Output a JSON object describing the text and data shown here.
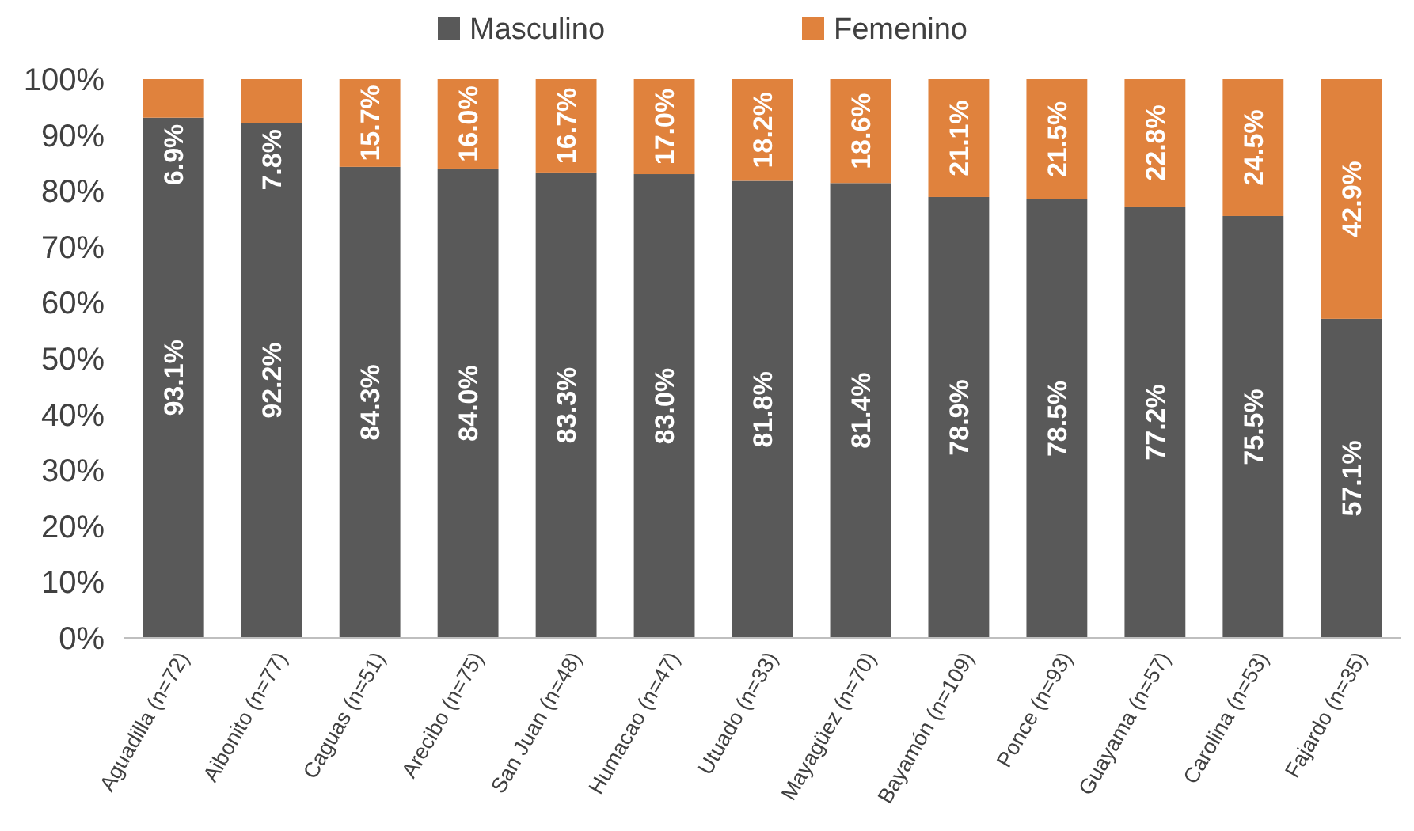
{
  "chart_data": {
    "type": "bar",
    "stacked": true,
    "legend": "top",
    "categories": [
      "Aguadilla (n=72)",
      "Aibonito (n=77)",
      "Caguas (n=51)",
      "Arecibo (n=75)",
      "San Juan (n=48)",
      "Humacao (n=47)",
      "Utuado (n=33)",
      "Mayagüez (n=70)",
      "Bayamón (n=109)",
      "Ponce (n=93)",
      "Guayama (n=57)",
      "Carolina (n=53)",
      "Fajardo (n=35)"
    ],
    "series": [
      {
        "name": "Masculino",
        "color": "#595959",
        "values": [
          93.1,
          92.2,
          84.3,
          84.0,
          83.3,
          83.0,
          81.8,
          81.4,
          78.9,
          78.5,
          77.2,
          75.5,
          57.1
        ],
        "value_labels": [
          "93.1%",
          "92.2%",
          "84.3%",
          "84.0%",
          "83.3%",
          "83.0%",
          "81.8%",
          "81.4%",
          "78.9%",
          "78.5%",
          "77.2%",
          "75.5%",
          "57.1%"
        ]
      },
      {
        "name": "Femenino",
        "color": "#e0823d",
        "values": [
          6.9,
          7.8,
          15.7,
          16.0,
          16.7,
          17.0,
          18.2,
          18.6,
          21.1,
          21.5,
          22.8,
          24.5,
          42.9
        ],
        "value_labels": [
          "6.9%",
          "7.8%",
          "15.7%",
          "16.0%",
          "16.7%",
          "17.0%",
          "18.2%",
          "18.6%",
          "21.1%",
          "21.5%",
          "22.8%",
          "24.5%",
          "42.9%"
        ]
      }
    ],
    "ylim": [
      0,
      100
    ],
    "yticks": [
      {
        "value": 0,
        "label": "0%"
      },
      {
        "value": 10,
        "label": "10%"
      },
      {
        "value": 20,
        "label": "20%"
      },
      {
        "value": 30,
        "label": "30%"
      },
      {
        "value": 40,
        "label": "40%"
      },
      {
        "value": 50,
        "label": "50%"
      },
      {
        "value": 60,
        "label": "60%"
      },
      {
        "value": 70,
        "label": "70%"
      },
      {
        "value": 80,
        "label": "80%"
      },
      {
        "value": 90,
        "label": "90%"
      },
      {
        "value": 100,
        "label": "100%"
      }
    ]
  }
}
